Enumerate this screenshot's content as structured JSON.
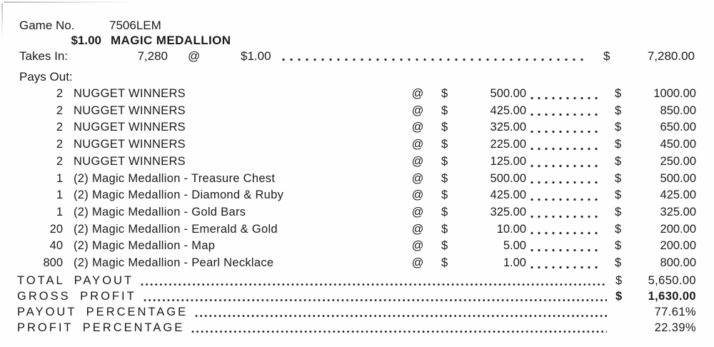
{
  "header": {
    "game_no_label": "Game No.",
    "game_no_value": "7506LEM",
    "ticket_price": "$1.00",
    "game_name": "MAGIC MEDALLION"
  },
  "takes_in": {
    "label": "Takes In:",
    "count": "7,280",
    "at_symbol": "@",
    "unit_price": "$1.00",
    "currency_symbol": "$",
    "total": "7,280.00"
  },
  "pays_out": {
    "label": "Pays Out:",
    "rows": [
      {
        "qty": "2",
        "item": "NUGGET WINNERS",
        "at": "@",
        "cur": "$",
        "price": "500.00",
        "total_cur": "$",
        "total": "1000.00"
      },
      {
        "qty": "2",
        "item": "NUGGET WINNERS",
        "at": "@",
        "cur": "$",
        "price": "425.00",
        "total_cur": "$",
        "total": "850.00"
      },
      {
        "qty": "2",
        "item": "NUGGET WINNERS",
        "at": "@",
        "cur": "$",
        "price": "325.00",
        "total_cur": "$",
        "total": "650.00"
      },
      {
        "qty": "2",
        "item": "NUGGET WINNERS",
        "at": "@",
        "cur": "$",
        "price": "225.00",
        "total_cur": "$",
        "total": "450.00"
      },
      {
        "qty": "2",
        "item": "NUGGET WINNERS",
        "at": "@",
        "cur": "$",
        "price": "125.00",
        "total_cur": "$",
        "total": "250.00"
      },
      {
        "qty": "1",
        "item": "(2) Magic Medallion - Treasure Chest",
        "at": "@",
        "cur": "$",
        "price": "500.00",
        "total_cur": "$",
        "total": "500.00"
      },
      {
        "qty": "1",
        "item": "(2) Magic Medallion - Diamond & Ruby",
        "at": "@",
        "cur": "$",
        "price": "425.00",
        "total_cur": "$",
        "total": "425.00"
      },
      {
        "qty": "1",
        "item": "(2) Magic Medallion - Gold Bars",
        "at": "@",
        "cur": "$",
        "price": "325.00",
        "total_cur": "$",
        "total": "325.00"
      },
      {
        "qty": "20",
        "item": "(2) Magic Medallion - Emerald & Gold",
        "at": "@",
        "cur": "$",
        "price": "10.00",
        "total_cur": "$",
        "total": "200.00"
      },
      {
        "qty": "40",
        "item": "(2) Magic Medallion - Map",
        "at": "@",
        "cur": "$",
        "price": "5.00",
        "total_cur": "$",
        "total": "200.00"
      },
      {
        "qty": "800",
        "item": "(2) Magic Medallion - Pearl Necklace",
        "at": "@",
        "cur": "$",
        "price": "1.00",
        "total_cur": "$",
        "total": "800.00"
      }
    ]
  },
  "summary": {
    "rows": [
      {
        "label": "TOTAL PAYOUT",
        "cur": "$",
        "value": "5,650.00",
        "bold": false
      },
      {
        "label": "GROSS PROFIT",
        "cur": "$",
        "value": "1,630.00",
        "bold": true
      },
      {
        "label": "PAYOUT PERCENTAGE",
        "cur": "",
        "value": "77.61%",
        "bold": false
      },
      {
        "label": "PROFIT PERCENTAGE",
        "cur": "",
        "value": "22.39%",
        "bold": false
      }
    ]
  }
}
